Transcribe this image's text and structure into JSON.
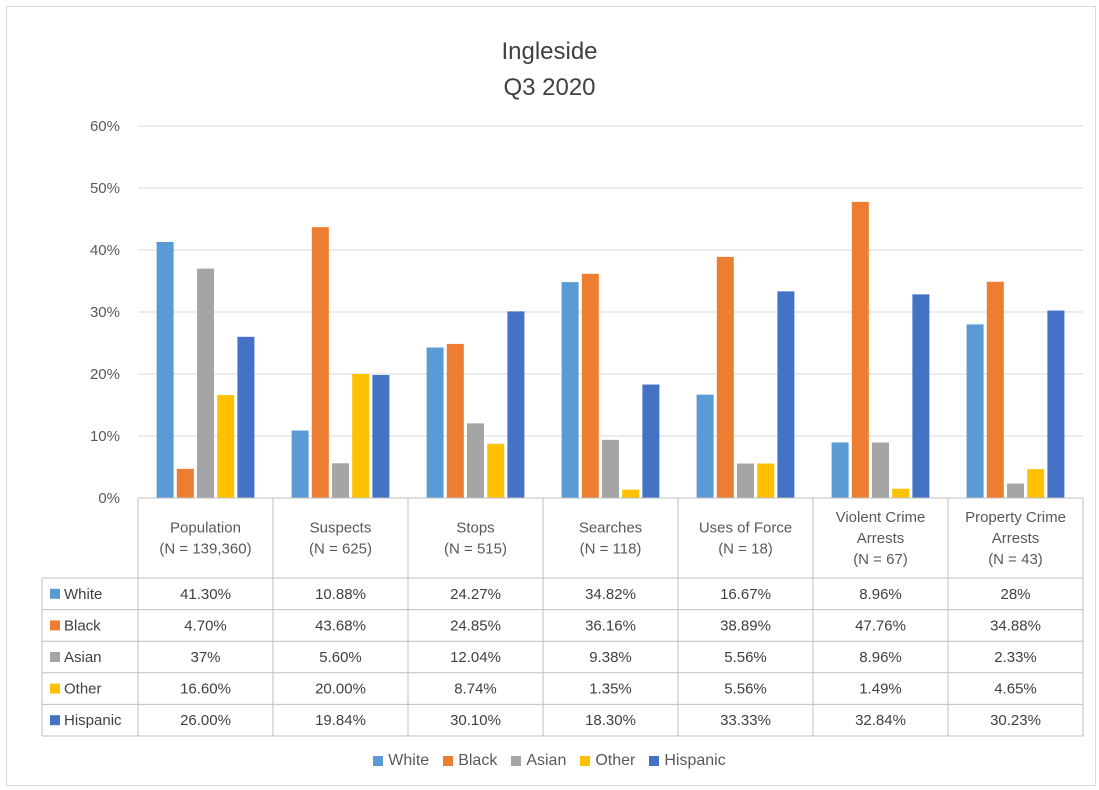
{
  "chart_data": {
    "type": "bar",
    "title": [
      "Ingleside",
      "Q3 2020"
    ],
    "categories": [
      [
        "Population",
        "(N = 139,360)"
      ],
      [
        "Suspects",
        "(N = 625)"
      ],
      [
        "Stops",
        "(N = 515)"
      ],
      [
        "Searches",
        "(N = 118)"
      ],
      [
        "Uses of Force",
        "(N = 18)"
      ],
      [
        "Violent Crime",
        "Arrests",
        "(N = 67)"
      ],
      [
        "Property Crime",
        "Arrests",
        "(N = 43)"
      ]
    ],
    "y_ticks": [
      "0%",
      "10%",
      "20%",
      "30%",
      "40%",
      "50%",
      "60%"
    ],
    "ylim": [
      0,
      60
    ],
    "grid": true,
    "legend_position": "bottom",
    "series": [
      {
        "name": "White",
        "color": "#5b9bd5",
        "values": [
          41.3,
          10.88,
          24.27,
          34.82,
          16.67,
          8.96,
          28
        ],
        "labels": [
          "41.30%",
          "10.88%",
          "24.27%",
          "34.82%",
          "16.67%",
          "8.96%",
          "28%"
        ]
      },
      {
        "name": "Black",
        "color": "#ed7d31",
        "values": [
          4.7,
          43.68,
          24.85,
          36.16,
          38.89,
          47.76,
          34.88
        ],
        "labels": [
          "4.70%",
          "43.68%",
          "24.85%",
          "36.16%",
          "38.89%",
          "47.76%",
          "34.88%"
        ]
      },
      {
        "name": "Asian",
        "color": "#a5a5a5",
        "values": [
          37,
          5.6,
          12.04,
          9.38,
          5.56,
          8.96,
          2.33
        ],
        "labels": [
          "37%",
          "5.60%",
          "12.04%",
          "9.38%",
          "5.56%",
          "8.96%",
          "2.33%"
        ]
      },
      {
        "name": "Other",
        "color": "#ffc000",
        "values": [
          16.6,
          20.0,
          8.74,
          1.35,
          5.56,
          1.49,
          4.65
        ],
        "labels": [
          "16.60%",
          "20.00%",
          "8.74%",
          "1.35%",
          "5.56%",
          "1.49%",
          "4.65%"
        ]
      },
      {
        "name": "Hispanic",
        "color": "#4472c4",
        "values": [
          26.0,
          19.84,
          30.1,
          18.3,
          33.33,
          32.84,
          30.23
        ],
        "labels": [
          "26.00%",
          "19.84%",
          "30.10%",
          "18.30%",
          "33.33%",
          "32.84%",
          "30.23%"
        ]
      }
    ]
  }
}
